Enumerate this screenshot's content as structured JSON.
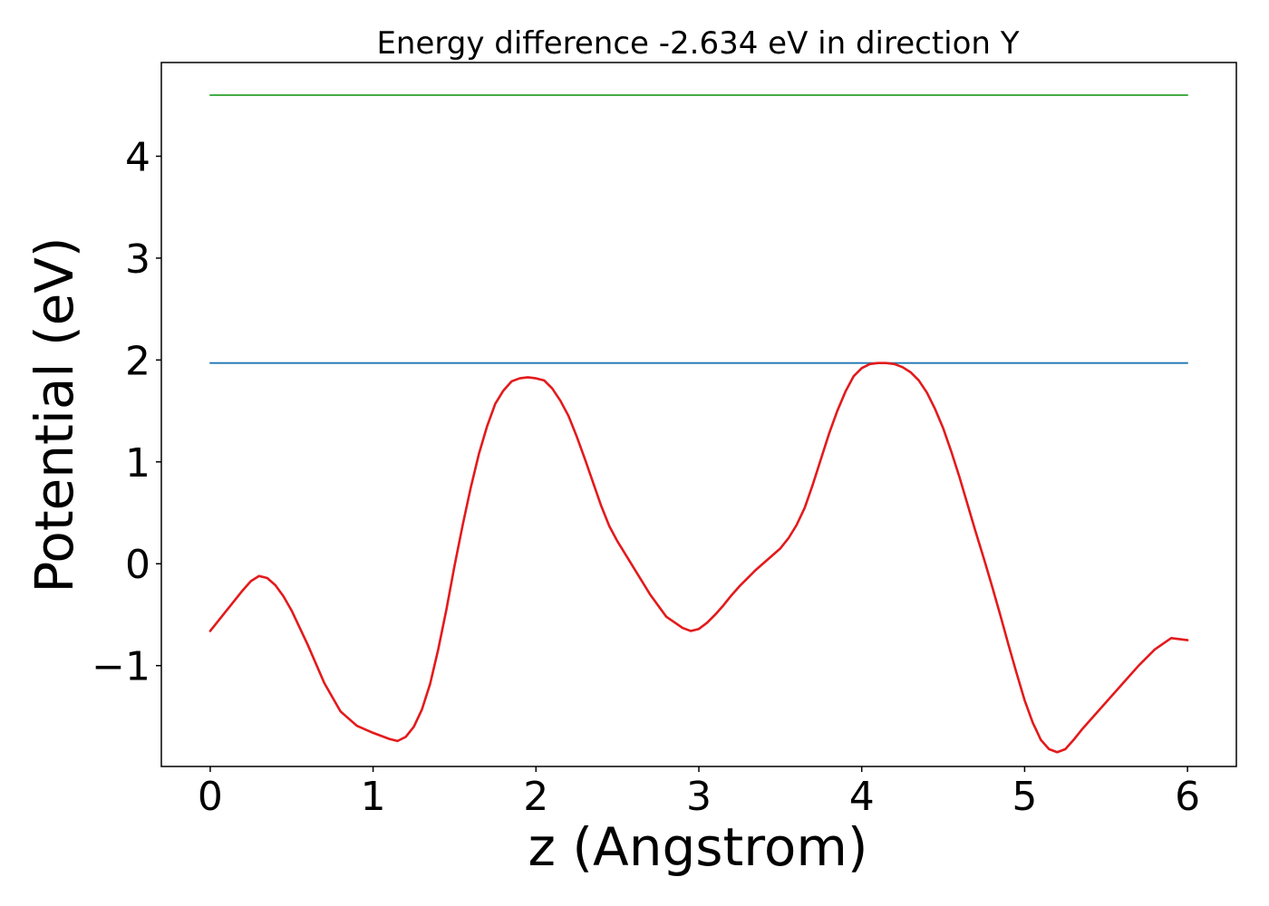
{
  "chart_data": {
    "type": "line",
    "title": "Energy difference -2.634 eV in direction Y",
    "xlabel": "z (Angstrom)",
    "ylabel": "Potential (eV)",
    "xlim": [
      -0.3,
      6.3
    ],
    "ylim": [
      -1.99,
      4.92
    ],
    "xticks": [
      0,
      1,
      2,
      3,
      4,
      5,
      6
    ],
    "yticks": [
      -1,
      0,
      1,
      2,
      3,
      4
    ],
    "xtick_labels": [
      "0",
      "1",
      "2",
      "3",
      "4",
      "5",
      "6"
    ],
    "ytick_labels": [
      "−1",
      "0",
      "1",
      "2",
      "3",
      "4"
    ],
    "grid": false,
    "colors": {
      "potential": "#e31a1c",
      "max_potential": "#1f77b4",
      "upper_level": "#2ca02c"
    },
    "series": [
      {
        "key": "potential",
        "x": [
          0.0,
          0.05,
          0.1,
          0.15,
          0.2,
          0.25,
          0.3,
          0.35,
          0.4,
          0.45,
          0.5,
          0.6,
          0.7,
          0.8,
          0.9,
          1.0,
          1.1,
          1.15,
          1.2,
          1.25,
          1.3,
          1.35,
          1.4,
          1.45,
          1.5,
          1.55,
          1.6,
          1.65,
          1.7,
          1.75,
          1.8,
          1.85,
          1.9,
          1.95,
          2.0,
          2.05,
          2.1,
          2.15,
          2.2,
          2.25,
          2.3,
          2.35,
          2.4,
          2.45,
          2.5,
          2.55,
          2.6,
          2.7,
          2.8,
          2.9,
          2.95,
          3.0,
          3.05,
          3.1,
          3.15,
          3.2,
          3.25,
          3.3,
          3.35,
          3.4,
          3.45,
          3.5,
          3.55,
          3.6,
          3.65,
          3.7,
          3.75,
          3.8,
          3.85,
          3.9,
          3.95,
          4.0,
          4.05,
          4.1,
          4.15,
          4.2,
          4.25,
          4.3,
          4.35,
          4.4,
          4.45,
          4.5,
          4.55,
          4.6,
          4.65,
          4.7,
          4.75,
          4.8,
          4.85,
          4.9,
          4.95,
          5.0,
          5.05,
          5.1,
          5.15,
          5.2,
          5.25,
          5.3,
          5.35,
          5.4,
          5.45,
          5.5,
          5.55,
          5.6,
          5.7,
          5.8,
          5.9,
          6.0
        ],
        "y": [
          -0.66,
          -0.56,
          -0.46,
          -0.36,
          -0.26,
          -0.17,
          -0.12,
          -0.14,
          -0.21,
          -0.32,
          -0.46,
          -0.8,
          -1.17,
          -1.45,
          -1.59,
          -1.66,
          -1.72,
          -1.74,
          -1.7,
          -1.6,
          -1.43,
          -1.18,
          -0.84,
          -0.45,
          -0.02,
          0.38,
          0.75,
          1.08,
          1.35,
          1.57,
          1.7,
          1.79,
          1.82,
          1.83,
          1.82,
          1.8,
          1.72,
          1.6,
          1.45,
          1.25,
          1.03,
          0.8,
          0.57,
          0.37,
          0.22,
          0.09,
          -0.04,
          -0.3,
          -0.52,
          -0.63,
          -0.66,
          -0.64,
          -0.58,
          -0.5,
          -0.41,
          -0.31,
          -0.22,
          -0.14,
          -0.06,
          0.01,
          0.08,
          0.15,
          0.25,
          0.38,
          0.55,
          0.78,
          1.03,
          1.28,
          1.5,
          1.69,
          1.84,
          1.92,
          1.96,
          1.97,
          1.97,
          1.96,
          1.93,
          1.88,
          1.8,
          1.68,
          1.52,
          1.33,
          1.1,
          0.85,
          0.58,
          0.31,
          0.05,
          -0.22,
          -0.5,
          -0.79,
          -1.07,
          -1.34,
          -1.56,
          -1.73,
          -1.82,
          -1.85,
          -1.82,
          -1.73,
          -1.63,
          -1.54,
          -1.45,
          -1.36,
          -1.27,
          -1.18,
          -1.0,
          -0.84,
          -0.73,
          -0.75
        ]
      },
      {
        "key": "max_potential",
        "x": [
          0.0,
          6.0
        ],
        "y": [
          1.97,
          1.97
        ]
      },
      {
        "key": "upper_level",
        "x": [
          0.0,
          6.0
        ],
        "y": [
          4.6,
          4.6
        ]
      }
    ]
  }
}
